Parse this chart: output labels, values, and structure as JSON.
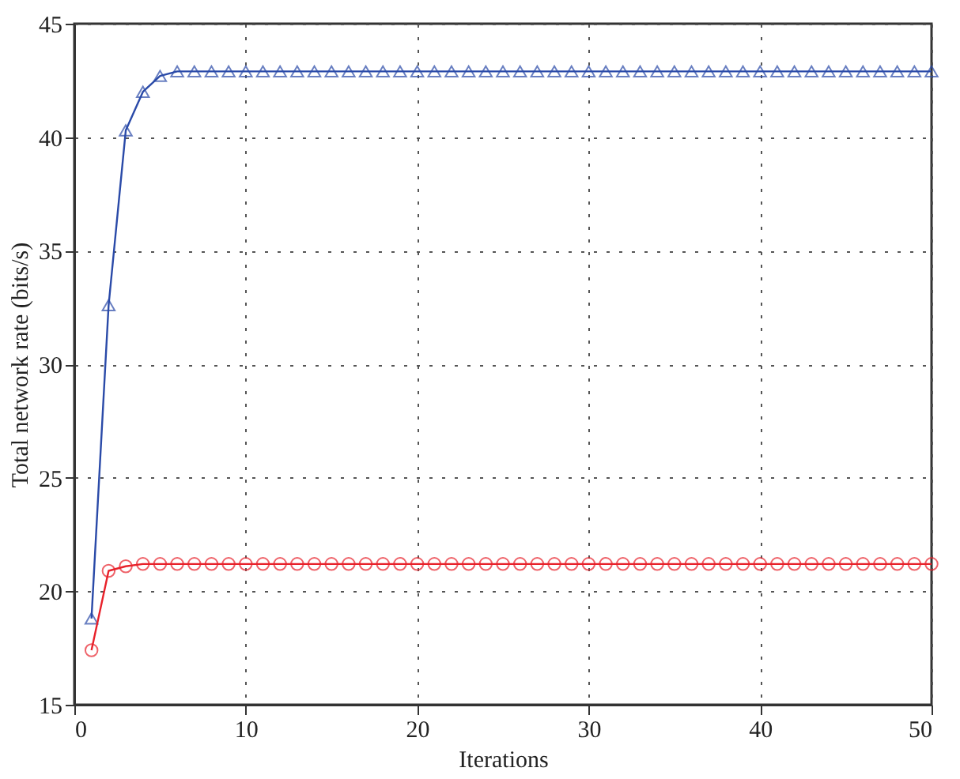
{
  "chart_data": {
    "type": "line",
    "xlabel": "Iterations",
    "ylabel": "Total network rate (bits/s)",
    "x": [
      1,
      2,
      3,
      4,
      5,
      6,
      7,
      8,
      9,
      10,
      11,
      12,
      13,
      14,
      15,
      16,
      17,
      18,
      19,
      20,
      21,
      22,
      23,
      24,
      25,
      26,
      27,
      28,
      29,
      30,
      31,
      32,
      33,
      34,
      35,
      36,
      37,
      38,
      39,
      40,
      41,
      42,
      43,
      44,
      45,
      46,
      47,
      48,
      49,
      50
    ],
    "series": [
      {
        "color": "#2a4aa8",
        "marker": "triangle",
        "values": [
          18.8,
          32.6,
          40.3,
          42.0,
          42.7,
          42.9,
          42.9,
          42.9,
          42.9,
          42.9,
          42.9,
          42.9,
          42.9,
          42.9,
          42.9,
          42.9,
          42.9,
          42.9,
          42.9,
          42.9,
          42.9,
          42.9,
          42.9,
          42.9,
          42.9,
          42.9,
          42.9,
          42.9,
          42.9,
          42.9,
          42.9,
          42.9,
          42.9,
          42.9,
          42.9,
          42.9,
          42.9,
          42.9,
          42.9,
          42.9,
          42.9,
          42.9,
          42.9,
          42.9,
          42.9,
          42.9,
          42.9,
          42.9,
          42.9,
          42.9
        ]
      },
      {
        "color": "#e8212a",
        "marker": "circle",
        "values": [
          17.4,
          20.9,
          21.1,
          21.2,
          21.2,
          21.2,
          21.2,
          21.2,
          21.2,
          21.2,
          21.2,
          21.2,
          21.2,
          21.2,
          21.2,
          21.2,
          21.2,
          21.2,
          21.2,
          21.2,
          21.2,
          21.2,
          21.2,
          21.2,
          21.2,
          21.2,
          21.2,
          21.2,
          21.2,
          21.2,
          21.2,
          21.2,
          21.2,
          21.2,
          21.2,
          21.2,
          21.2,
          21.2,
          21.2,
          21.2,
          21.2,
          21.2,
          21.2,
          21.2,
          21.2,
          21.2,
          21.2,
          21.2,
          21.2,
          21.2
        ]
      }
    ],
    "xlim": [
      0,
      50
    ],
    "xticks": [
      0,
      10,
      20,
      30,
      40,
      50
    ],
    "ylim": [
      15,
      45
    ],
    "yticks": [
      15,
      20,
      25,
      30,
      35,
      40,
      45
    ],
    "grid": true,
    "line_style": "solid"
  }
}
